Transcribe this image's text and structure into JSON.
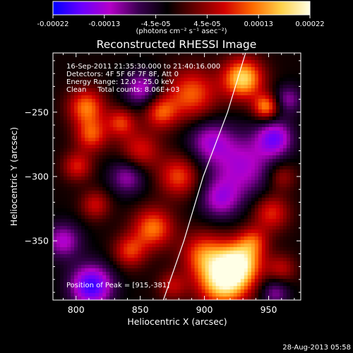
{
  "chart_data": {
    "type": "heatmap",
    "title": "Reconstructed RHESSI Image",
    "xlabel": "Heliocentric X (arcsec)",
    "ylabel": "Heliocentric Y (arcsec)",
    "xlim": [
      782,
      975
    ],
    "ylim": [
      -396,
      -204
    ],
    "x_ticks": [
      800,
      850,
      900,
      950
    ],
    "y_ticks": [
      -250,
      -300,
      -350
    ],
    "x_tick_labels": [
      "800",
      "850",
      "900",
      "950"
    ],
    "y_tick_labels": [
      "−250",
      "−300",
      "−350"
    ],
    "colorbar": {
      "range": [
        -0.00022,
        0.00022
      ],
      "tick_labels": [
        "-0.00022",
        "-0.00013",
        "-4.5e-05",
        "4.5e-05",
        "0.00013",
        "0.00022"
      ],
      "unit_label": "(photons cm⁻² s⁻¹ asec⁻²)",
      "colormap": [
        "#0000ff",
        "#6a00ff",
        "#b400c8",
        "#3a0050",
        "#000000",
        "#6a0000",
        "#d10000",
        "#ff6a00",
        "#ffd24a",
        "#ffffe6"
      ]
    },
    "annotations": [
      "16-Sep-2011 21:35:30.000 to 21:40:16.000",
      "Detectors: 4F 5F 6F 7F 8F, Att 0",
      "Energy Range: 12.0 - 25.0 keV",
      "Clean     Total counts: 8.06E+03"
    ],
    "peak_label": "Position of Peak = [915,-381]",
    "peak": [
      915,
      -381
    ],
    "limb": [
      [
        932,
        -204
      ],
      [
        918,
        -250
      ],
      [
        899,
        -300
      ],
      [
        884,
        -350
      ],
      [
        868,
        -396
      ]
    ],
    "blobs": [
      {
        "x": 915,
        "y": -381,
        "amp": 1.0,
        "r": 14
      },
      {
        "x": 928,
        "y": -366,
        "amp": 0.8,
        "r": 12
      },
      {
        "x": 899,
        "y": -360,
        "amp": 0.55,
        "r": 12
      },
      {
        "x": 930,
        "y": -224,
        "amp": 0.9,
        "r": 11
      },
      {
        "x": 948,
        "y": -246,
        "amp": 0.7,
        "r": 7
      },
      {
        "x": 890,
        "y": -236,
        "amp": 0.6,
        "r": 14
      },
      {
        "x": 866,
        "y": -250,
        "amp": 0.55,
        "r": 9
      },
      {
        "x": 880,
        "y": -300,
        "amp": 0.55,
        "r": 11
      },
      {
        "x": 850,
        "y": -280,
        "amp": 0.45,
        "r": 11
      },
      {
        "x": 808,
        "y": -246,
        "amp": 0.65,
        "r": 10
      },
      {
        "x": 812,
        "y": -268,
        "amp": 0.55,
        "r": 9
      },
      {
        "x": 835,
        "y": -258,
        "amp": 0.5,
        "r": 8
      },
      {
        "x": 801,
        "y": -292,
        "amp": 0.45,
        "r": 8
      },
      {
        "x": 860,
        "y": -340,
        "amp": 0.65,
        "r": 11
      },
      {
        "x": 842,
        "y": -358,
        "amp": 0.5,
        "r": 9
      },
      {
        "x": 815,
        "y": -322,
        "amp": 0.4,
        "r": 8
      },
      {
        "x": 952,
        "y": -328,
        "amp": 0.5,
        "r": 10
      },
      {
        "x": 960,
        "y": -300,
        "amp": 0.35,
        "r": 8
      },
      {
        "x": 938,
        "y": -350,
        "amp": 0.4,
        "r": 8
      },
      {
        "x": 960,
        "y": -372,
        "amp": 0.35,
        "r": 8
      },
      {
        "x": 875,
        "y": -385,
        "amp": 0.35,
        "r": 8
      },
      {
        "x": 930,
        "y": -292,
        "amp": -0.5,
        "r": 18
      },
      {
        "x": 955,
        "y": -270,
        "amp": -0.6,
        "r": 10
      },
      {
        "x": 904,
        "y": -272,
        "amp": -0.45,
        "r": 12
      },
      {
        "x": 812,
        "y": -385,
        "amp": -0.8,
        "r": 12
      },
      {
        "x": 790,
        "y": -350,
        "amp": -0.5,
        "r": 10
      },
      {
        "x": 851,
        "y": -232,
        "amp": -0.5,
        "r": 10
      },
      {
        "x": 840,
        "y": -300,
        "amp": -0.45,
        "r": 10
      },
      {
        "x": 912,
        "y": -318,
        "amp": -0.45,
        "r": 11
      },
      {
        "x": 955,
        "y": -390,
        "amp": -0.4,
        "r": 8
      },
      {
        "x": 965,
        "y": -240,
        "amp": -0.4,
        "r": 8
      }
    ]
  },
  "footer": {
    "timestamp": "28-Aug-2013 05:58"
  }
}
